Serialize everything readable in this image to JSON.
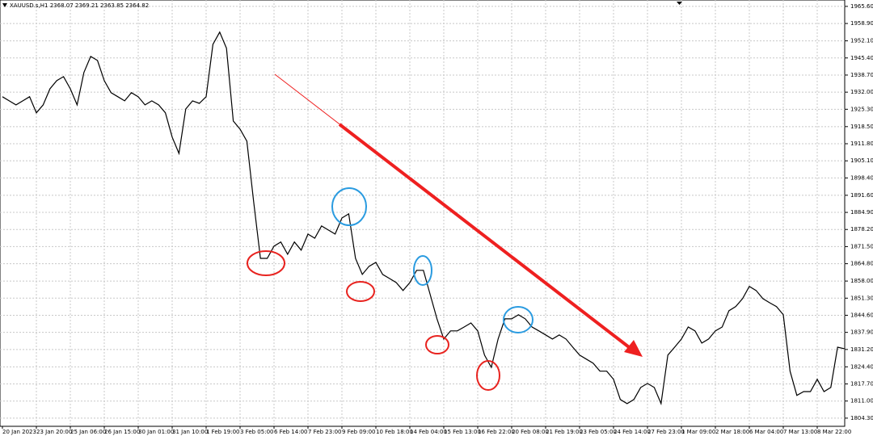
{
  "chart_data": {
    "type": "line",
    "title": "XAUUSD.s,H1 2368.07 2369.21 2363.85 2364.82",
    "categories": [
      "20 Jan 2023",
      null,
      null,
      null,
      null,
      "23 Jan 20:00",
      null,
      null,
      null,
      null,
      "25 Jan 06:00",
      null,
      null,
      null,
      null,
      "26 Jan 15:00",
      null,
      null,
      null,
      null,
      "30 Jan 01:00",
      null,
      null,
      null,
      null,
      "31 Jan 10:00",
      null,
      null,
      null,
      null,
      "1 Feb 19:00",
      null,
      null,
      null,
      null,
      "3 Feb 05:00",
      null,
      null,
      null,
      null,
      "6 Feb 14:00",
      null,
      null,
      null,
      null,
      "7 Feb 23:00",
      null,
      null,
      null,
      null,
      "9 Feb 09:00",
      null,
      null,
      null,
      null,
      "10 Feb 18:00",
      null,
      null,
      null,
      null,
      "14 Feb 04:00",
      null,
      null,
      null,
      null,
      "15 Feb 13:00",
      null,
      null,
      null,
      null,
      "16 Feb 22:00",
      null,
      null,
      null,
      null,
      "20 Feb 08:00",
      null,
      null,
      null,
      null,
      "21 Feb 19:00",
      null,
      null,
      null,
      null,
      "23 Feb 05:00",
      null,
      null,
      null,
      null,
      "24 Feb 14:00",
      null,
      null,
      null,
      null,
      "27 Feb 23:00",
      null,
      null,
      null,
      null,
      "1 Mar 09:00",
      null,
      null,
      null,
      null,
      "2 Mar 18:00",
      null,
      null,
      null,
      null,
      "6 Mar 04:00",
      null,
      null,
      null,
      null,
      "7 Mar 13:00",
      null,
      null,
      null,
      null,
      "8 Mar 22:00",
      null,
      null,
      null,
      null
    ],
    "values": [
      1930.2,
      1928.6,
      1927.0,
      1928.6,
      1930.2,
      1923.9,
      1927.0,
      1933.3,
      1936.5,
      1938.1,
      1933.3,
      1927.0,
      1939.7,
      1946.0,
      1944.4,
      1936.5,
      1931.8,
      1930.2,
      1928.6,
      1931.8,
      1930.2,
      1927.0,
      1928.6,
      1927.0,
      1923.9,
      1914.4,
      1908.0,
      1925.4,
      1928.6,
      1927.6,
      1930.2,
      1950.7,
      1955.5,
      1949.2,
      1920.7,
      1917.5,
      1912.8,
      1889.1,
      1866.9,
      1866.9,
      1871.7,
      1873.3,
      1868.5,
      1873.3,
      1870.1,
      1876.4,
      1874.8,
      1879.6,
      1878.0,
      1876.4,
      1882.7,
      1884.3,
      1866.9,
      1860.6,
      1863.8,
      1865.3,
      1860.6,
      1859.0,
      1857.4,
      1854.3,
      1857.4,
      1862.2,
      1862.2,
      1852.7,
      1843.2,
      1835.3,
      1838.5,
      1838.5,
      1840.0,
      1841.6,
      1838.5,
      1829.0,
      1824.2,
      1835.3,
      1843.2,
      1843.2,
      1844.8,
      1843.2,
      1840.0,
      1838.5,
      1836.9,
      1835.3,
      1836.9,
      1835.3,
      1832.1,
      1829.0,
      1827.4,
      1825.8,
      1822.7,
      1822.7,
      1819.5,
      1811.6,
      1810.0,
      1811.6,
      1816.3,
      1817.9,
      1816.3,
      1810.0,
      1829.0,
      1832.1,
      1835.3,
      1840.0,
      1838.5,
      1833.7,
      1835.3,
      1838.5,
      1840.0,
      1846.4,
      1848.0,
      1851.1,
      1855.9,
      1854.3,
      1851.1,
      1849.5,
      1848.0,
      1844.8,
      1822.7,
      1813.2,
      1814.7,
      1814.7,
      1819.5,
      1814.7,
      1816.3,
      1832.1,
      1831.5
    ],
    "color": "#000000",
    "ylim": [
      1801.1,
      1968.1
    ],
    "yticks": [
      {
        "value": 1965.6,
        "label": "1965.60"
      },
      {
        "value": 1958.9,
        "label": "1958.90"
      },
      {
        "value": 1952.1,
        "label": "1952.10"
      },
      {
        "value": 1945.4,
        "label": "1945.40"
      },
      {
        "value": 1938.7,
        "label": "1938.70"
      },
      {
        "value": 1932.0,
        "label": "1932.00"
      },
      {
        "value": 1925.3,
        "label": "1925.30"
      },
      {
        "value": 1918.5,
        "label": "1918.50"
      },
      {
        "value": 1911.8,
        "label": "1911.80"
      },
      {
        "value": 1905.1,
        "label": "1905.10"
      },
      {
        "value": 1898.4,
        "label": "1898.40"
      },
      {
        "value": 1891.6,
        "label": "1891.60"
      },
      {
        "value": 1884.9,
        "label": "1884.90"
      },
      {
        "value": 1878.2,
        "label": "1878.20"
      },
      {
        "value": 1871.5,
        "label": "1871.50"
      },
      {
        "value": 1864.8,
        "label": "1864.80"
      },
      {
        "value": 1858.0,
        "label": "1858.00"
      },
      {
        "value": 1851.3,
        "label": "1851.30"
      },
      {
        "value": 1844.6,
        "label": "1844.60"
      },
      {
        "value": 1837.9,
        "label": "1837.90"
      },
      {
        "value": 1831.2,
        "label": "1831.20"
      },
      {
        "value": 1824.4,
        "label": "1824.40"
      },
      {
        "value": 1817.7,
        "label": "1817.70"
      },
      {
        "value": 1811.0,
        "label": "1811.00"
      },
      {
        "value": 1804.3,
        "label": "1804.30"
      }
    ],
    "grid": true
  }
}
